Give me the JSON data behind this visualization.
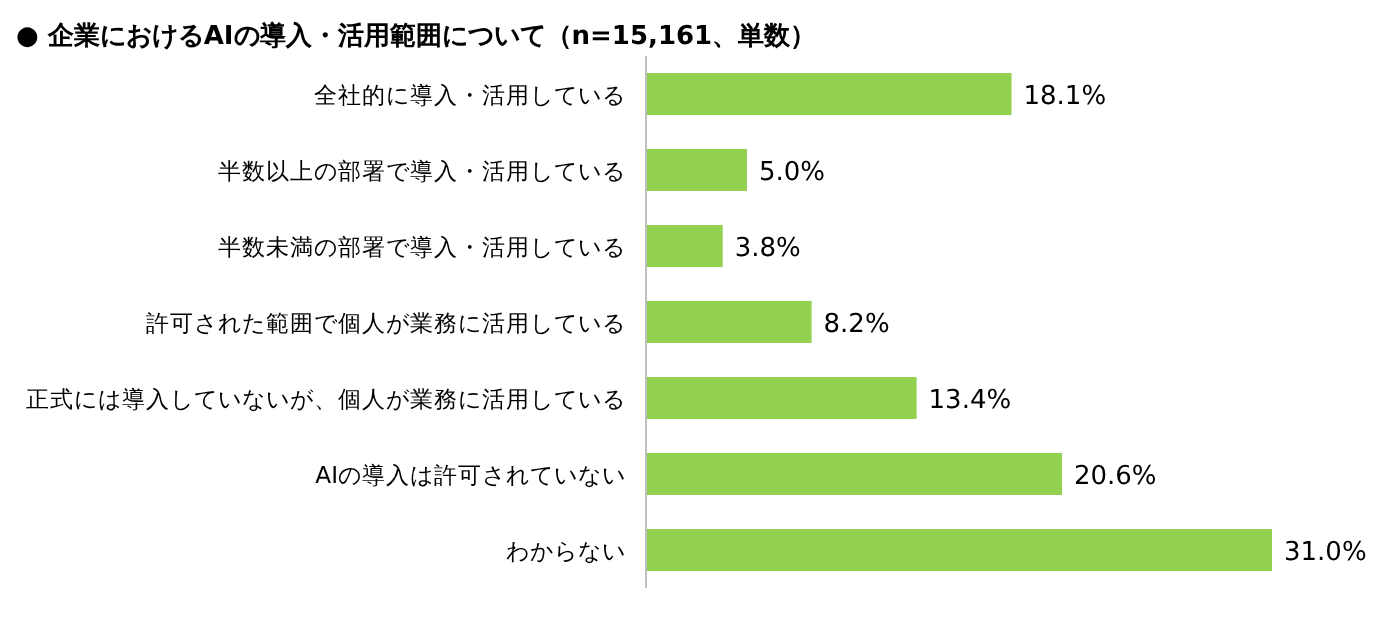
{
  "chart_data": {
    "type": "bar",
    "orientation": "horizontal",
    "title": "● 企業におけるAIの導入・活用範囲について（n=15,161、単数）",
    "categories": [
      "全社的に導入・活用している",
      "半数以上の部署で導入・活用している",
      "半数未満の部署で導入・活用している",
      "許可された範囲で個人が業務に活用している",
      "正式には導入していないが、個人が業務に活用している",
      "AIの導入は許可されていない",
      "わからない"
    ],
    "values": [
      18.1,
      5.0,
      3.8,
      8.2,
      13.4,
      20.6,
      31.0
    ],
    "value_labels": [
      "18.1%",
      "5.0%",
      "3.8%",
      "8.2%",
      "13.4%",
      "20.6%",
      "31.0%"
    ],
    "color": "#92d050"
  }
}
